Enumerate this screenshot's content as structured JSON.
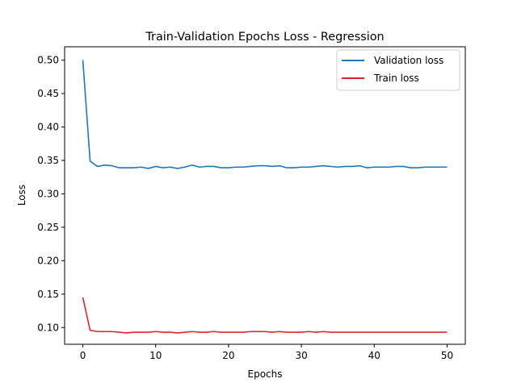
{
  "chart_data": {
    "type": "line",
    "title": "Train-Validation Epochs Loss - Regression",
    "xlabel": "Epochs",
    "ylabel": "Loss",
    "xlim": [
      -2.5,
      52.5
    ],
    "ylim": [
      0.075,
      0.52
    ],
    "xticks": [
      0,
      10,
      20,
      30,
      40,
      50
    ],
    "yticks": [
      0.1,
      0.15,
      0.2,
      0.25,
      0.3,
      0.35,
      0.4,
      0.45,
      0.5
    ],
    "legend_position": "top-right",
    "grid": false,
    "x": [
      0,
      1,
      2,
      3,
      4,
      5,
      6,
      7,
      8,
      9,
      10,
      11,
      12,
      13,
      14,
      15,
      16,
      17,
      18,
      19,
      20,
      21,
      22,
      23,
      24,
      25,
      26,
      27,
      28,
      29,
      30,
      31,
      32,
      33,
      34,
      35,
      36,
      37,
      38,
      39,
      40,
      41,
      42,
      43,
      44,
      45,
      46,
      47,
      48,
      49,
      50
    ],
    "series": [
      {
        "name": "Validation loss",
        "color": "#1f77b4",
        "values": [
          0.5,
          0.349,
          0.341,
          0.343,
          0.342,
          0.339,
          0.339,
          0.339,
          0.34,
          0.338,
          0.341,
          0.339,
          0.34,
          0.338,
          0.34,
          0.343,
          0.34,
          0.341,
          0.341,
          0.339,
          0.339,
          0.34,
          0.34,
          0.341,
          0.342,
          0.342,
          0.341,
          0.342,
          0.339,
          0.339,
          0.34,
          0.34,
          0.341,
          0.342,
          0.341,
          0.34,
          0.341,
          0.341,
          0.342,
          0.339,
          0.34,
          0.34,
          0.34,
          0.341,
          0.341,
          0.339,
          0.339,
          0.34,
          0.34,
          0.34,
          0.34
        ]
      },
      {
        "name": "Train loss",
        "color": "#d62728",
        "values": [
          0.145,
          0.096,
          0.094,
          0.094,
          0.094,
          0.093,
          0.092,
          0.093,
          0.093,
          0.093,
          0.094,
          0.093,
          0.093,
          0.092,
          0.093,
          0.094,
          0.093,
          0.093,
          0.094,
          0.093,
          0.093,
          0.093,
          0.093,
          0.094,
          0.094,
          0.094,
          0.093,
          0.094,
          0.093,
          0.093,
          0.093,
          0.094,
          0.093,
          0.094,
          0.093,
          0.093,
          0.093,
          0.093,
          0.093,
          0.093,
          0.093,
          0.093,
          0.093,
          0.093,
          0.093,
          0.093,
          0.093,
          0.093,
          0.093,
          0.093,
          0.093
        ]
      }
    ]
  }
}
